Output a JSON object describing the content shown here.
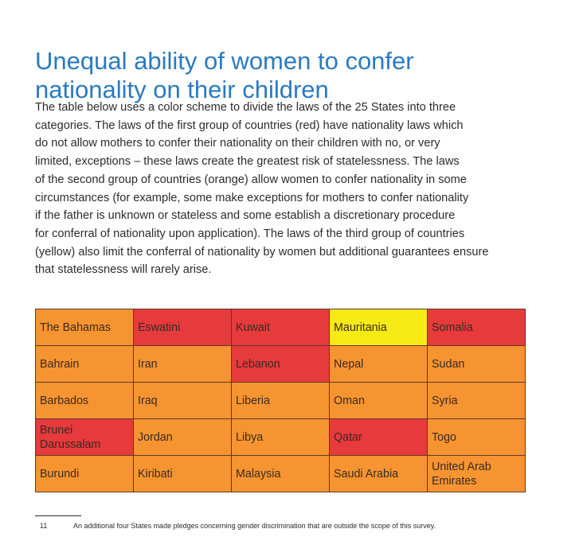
{
  "title_lines": [
    "Unequal ability of women to confer",
    "nationality on their children"
  ],
  "intro_lines": [
    "The table below uses a color scheme to divide the laws of the 25 States into three",
    "categories. The laws of the first group of countries (red) have nationality laws which",
    "do not allow mothers to confer their nationality on their children with no, or very",
    "limited, exceptions – these laws create the greatest risk of statelessness. The laws",
    "of the second group of countries (orange) allow women to confer nationality in some",
    "circumstances (for example, some make exceptions for mothers to confer nationality",
    "if the father is unknown or stateless and some establish a discretionary procedure",
    "for conferral of nationality upon application). The laws of the third group of countries",
    "(yellow) also limit the conferral of nationality by women but additional guarantees ensure",
    "that statelessness will rarely arise."
  ],
  "colors": {
    "red": "#e63a3d",
    "orange": "#f79432",
    "yellow": "#f5ea14",
    "title": "#2a7ac1"
  },
  "table": {
    "rows": [
      [
        {
          "name": "The Bahamas",
          "cat": "orange"
        },
        {
          "name": "Eswatini",
          "cat": "red"
        },
        {
          "name": "Kuwait",
          "cat": "red"
        },
        {
          "name": "Mauritania",
          "cat": "yellow"
        },
        {
          "name": "Somalia",
          "cat": "red"
        }
      ],
      [
        {
          "name": "Bahrain",
          "cat": "orange"
        },
        {
          "name": "Iran",
          "cat": "orange"
        },
        {
          "name": "Lebanon",
          "cat": "red"
        },
        {
          "name": "Nepal",
          "cat": "orange"
        },
        {
          "name": "Sudan",
          "cat": "orange"
        }
      ],
      [
        {
          "name": "Barbados",
          "cat": "orange"
        },
        {
          "name": "Iraq",
          "cat": "orange"
        },
        {
          "name": "Liberia",
          "cat": "orange"
        },
        {
          "name": "Oman",
          "cat": "orange"
        },
        {
          "name": "Syria",
          "cat": "orange"
        }
      ],
      [
        {
          "name": "Brunei Darussalam",
          "cat": "red"
        },
        {
          "name": "Jordan",
          "cat": "orange"
        },
        {
          "name": "Libya",
          "cat": "orange"
        },
        {
          "name": "Qatar",
          "cat": "red"
        },
        {
          "name": "Togo",
          "cat": "orange"
        }
      ],
      [
        {
          "name": "Burundi",
          "cat": "orange"
        },
        {
          "name": "Kiribati",
          "cat": "orange"
        },
        {
          "name": "Malaysia",
          "cat": "orange"
        },
        {
          "name": "Saudi Arabia",
          "cat": "orange"
        },
        {
          "name": "United Arab Emirates",
          "cat": "orange"
        }
      ]
    ]
  },
  "footnote": {
    "number": "11",
    "text": "An additional four States made pledges concerning gender discrimination that are outside the scope of this survey."
  }
}
